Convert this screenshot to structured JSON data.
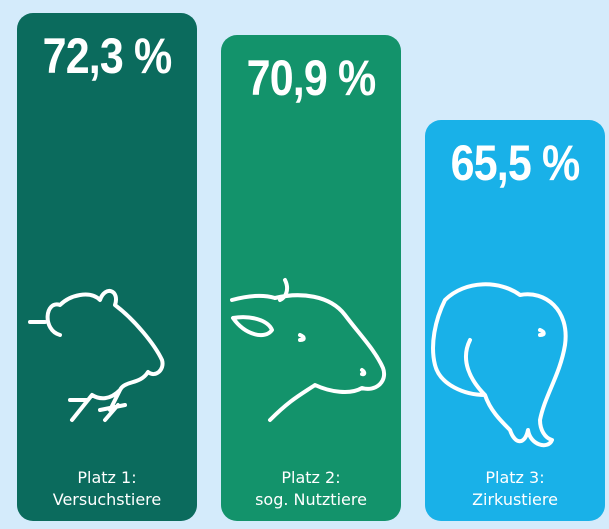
{
  "chart_data": {
    "type": "bar",
    "categories": [
      "Platz 1:\nVersuchstiere",
      "Platz 2:\nsog. Nutztiere",
      "Platz 3:\nZirkustiere"
    ],
    "values": [
      72.3,
      70.9,
      65.5
    ],
    "value_labels": [
      "72,3 %",
      "70,9 %",
      "65,5 %"
    ],
    "colors": [
      "#0b6b5d",
      "#13936b",
      "#19b1e8"
    ],
    "ylim": [
      40,
      72.5
    ]
  }
}
